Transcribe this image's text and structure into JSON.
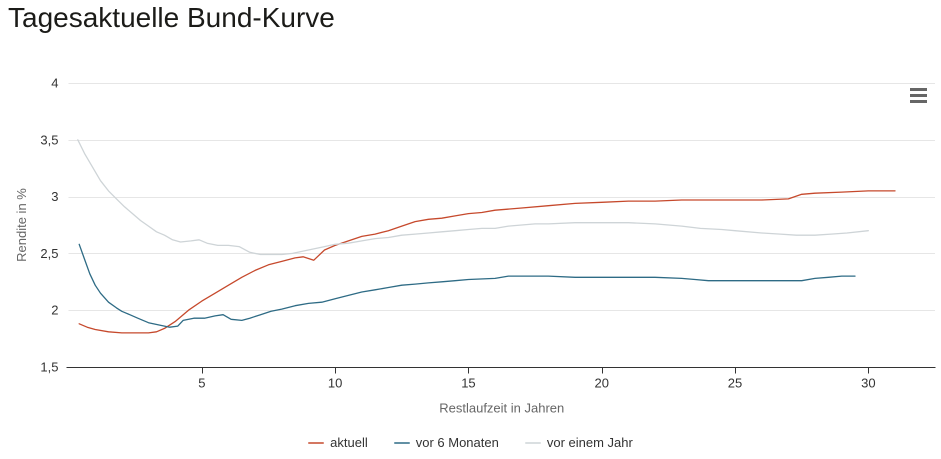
{
  "page": {
    "title": "Tagesaktuelle Bund-Kurve"
  },
  "icons": {
    "export_menu": "hamburger-menu-icon"
  },
  "colors": {
    "series_aktuell": "#c6492c",
    "series_vor_6_monaten": "#2e6b85",
    "series_vor_einem_jahr": "#ced4d7",
    "gridline": "#e6e6e6",
    "axis_line": "#333333",
    "tick_label": "#333333",
    "axis_title": "#666666",
    "menu_icon": "#666666"
  },
  "chart_data": {
    "type": "line",
    "title": "",
    "xlabel": "Restlaufzeit in Jahren",
    "ylabel": "Rendite in %",
    "xlim": [
      0,
      32.5
    ],
    "ylim": [
      1.5,
      4
    ],
    "x_ticks": [
      5,
      10,
      15,
      20,
      25,
      30
    ],
    "x_tick_labels": [
      "5",
      "10",
      "15",
      "20",
      "25",
      "30"
    ],
    "y_ticks": [
      1.5,
      2,
      2.5,
      3,
      3.5,
      4
    ],
    "y_tick_labels": [
      "1,5",
      "2",
      "2,5",
      "3",
      "3,5",
      "4"
    ],
    "grid": "horizontal",
    "legend_position": "bottom-center",
    "series": [
      {
        "name": "aktuell",
        "color": "#c6492c",
        "points": [
          [
            0.4,
            1.88
          ],
          [
            0.7,
            1.85
          ],
          [
            1,
            1.83
          ],
          [
            1.5,
            1.81
          ],
          [
            2,
            1.8
          ],
          [
            2.5,
            1.8
          ],
          [
            3,
            1.8
          ],
          [
            3.3,
            1.81
          ],
          [
            3.6,
            1.84
          ],
          [
            4,
            1.9
          ],
          [
            4.5,
            2.0
          ],
          [
            5,
            2.08
          ],
          [
            5.5,
            2.15
          ],
          [
            6,
            2.22
          ],
          [
            6.5,
            2.29
          ],
          [
            7,
            2.35
          ],
          [
            7.5,
            2.4
          ],
          [
            8,
            2.43
          ],
          [
            8.5,
            2.46
          ],
          [
            8.8,
            2.47
          ],
          [
            9.2,
            2.44
          ],
          [
            9.6,
            2.53
          ],
          [
            10,
            2.57
          ],
          [
            10.5,
            2.61
          ],
          [
            11,
            2.65
          ],
          [
            11.5,
            2.67
          ],
          [
            12,
            2.7
          ],
          [
            12.5,
            2.74
          ],
          [
            13,
            2.78
          ],
          [
            13.5,
            2.8
          ],
          [
            14,
            2.81
          ],
          [
            14.5,
            2.83
          ],
          [
            15,
            2.85
          ],
          [
            15.5,
            2.86
          ],
          [
            16,
            2.88
          ],
          [
            17,
            2.9
          ],
          [
            18,
            2.92
          ],
          [
            19,
            2.94
          ],
          [
            20,
            2.95
          ],
          [
            21,
            2.96
          ],
          [
            22,
            2.96
          ],
          [
            23,
            2.97
          ],
          [
            24,
            2.97
          ],
          [
            25,
            2.97
          ],
          [
            26,
            2.97
          ],
          [
            27,
            2.98
          ],
          [
            27.5,
            3.02
          ],
          [
            28,
            3.03
          ],
          [
            29,
            3.04
          ],
          [
            30,
            3.05
          ],
          [
            31,
            3.05
          ]
        ]
      },
      {
        "name": "vor 6 Monaten",
        "color": "#2e6b85",
        "points": [
          [
            0.4,
            2.58
          ],
          [
            0.6,
            2.45
          ],
          [
            0.8,
            2.32
          ],
          [
            1,
            2.22
          ],
          [
            1.2,
            2.15
          ],
          [
            1.5,
            2.07
          ],
          [
            1.8,
            2.02
          ],
          [
            2,
            1.99
          ],
          [
            2.3,
            1.96
          ],
          [
            2.6,
            1.93
          ],
          [
            3,
            1.89
          ],
          [
            3.4,
            1.87
          ],
          [
            3.8,
            1.85
          ],
          [
            4.1,
            1.86
          ],
          [
            4.3,
            1.91
          ],
          [
            4.7,
            1.93
          ],
          [
            5.1,
            1.93
          ],
          [
            5.5,
            1.95
          ],
          [
            5.8,
            1.96
          ],
          [
            6.1,
            1.92
          ],
          [
            6.5,
            1.91
          ],
          [
            6.8,
            1.93
          ],
          [
            7.2,
            1.96
          ],
          [
            7.6,
            1.99
          ],
          [
            8,
            2.01
          ],
          [
            8.5,
            2.04
          ],
          [
            9,
            2.06
          ],
          [
            9.5,
            2.07
          ],
          [
            10,
            2.1
          ],
          [
            10.5,
            2.13
          ],
          [
            11,
            2.16
          ],
          [
            11.5,
            2.18
          ],
          [
            12,
            2.2
          ],
          [
            12.5,
            2.22
          ],
          [
            13,
            2.23
          ],
          [
            13.5,
            2.24
          ],
          [
            14,
            2.25
          ],
          [
            14.5,
            2.26
          ],
          [
            15,
            2.27
          ],
          [
            16,
            2.28
          ],
          [
            16.5,
            2.3
          ],
          [
            17,
            2.3
          ],
          [
            18,
            2.3
          ],
          [
            19,
            2.29
          ],
          [
            20,
            2.29
          ],
          [
            21,
            2.29
          ],
          [
            22,
            2.29
          ],
          [
            23,
            2.28
          ],
          [
            23.5,
            2.27
          ],
          [
            24,
            2.26
          ],
          [
            25,
            2.26
          ],
          [
            26,
            2.26
          ],
          [
            27,
            2.26
          ],
          [
            27.5,
            2.26
          ],
          [
            28,
            2.28
          ],
          [
            28.5,
            2.29
          ],
          [
            29,
            2.3
          ],
          [
            29.5,
            2.3
          ]
        ]
      },
      {
        "name": "vor einem Jahr",
        "color": "#ced4d7",
        "points": [
          [
            0.35,
            3.5
          ],
          [
            0.6,
            3.38
          ],
          [
            0.9,
            3.26
          ],
          [
            1.2,
            3.14
          ],
          [
            1.5,
            3.05
          ],
          [
            1.8,
            2.98
          ],
          [
            2.1,
            2.91
          ],
          [
            2.4,
            2.85
          ],
          [
            2.7,
            2.79
          ],
          [
            3,
            2.74
          ],
          [
            3.3,
            2.69
          ],
          [
            3.6,
            2.66
          ],
          [
            3.9,
            2.62
          ],
          [
            4.2,
            2.6
          ],
          [
            4.6,
            2.61
          ],
          [
            4.9,
            2.62
          ],
          [
            5.2,
            2.59
          ],
          [
            5.6,
            2.57
          ],
          [
            6,
            2.57
          ],
          [
            6.4,
            2.56
          ],
          [
            6.8,
            2.51
          ],
          [
            7.2,
            2.49
          ],
          [
            7.6,
            2.49
          ],
          [
            8,
            2.49
          ],
          [
            8.4,
            2.5
          ],
          [
            8.8,
            2.52
          ],
          [
            9.2,
            2.54
          ],
          [
            9.6,
            2.56
          ],
          [
            10,
            2.58
          ],
          [
            10.5,
            2.59
          ],
          [
            11,
            2.61
          ],
          [
            11.5,
            2.63
          ],
          [
            12,
            2.64
          ],
          [
            12.5,
            2.66
          ],
          [
            13,
            2.67
          ],
          [
            13.5,
            2.68
          ],
          [
            14,
            2.69
          ],
          [
            14.5,
            2.7
          ],
          [
            15,
            2.71
          ],
          [
            15.5,
            2.72
          ],
          [
            16,
            2.72
          ],
          [
            16.5,
            2.74
          ],
          [
            17,
            2.75
          ],
          [
            17.5,
            2.76
          ],
          [
            18,
            2.76
          ],
          [
            19,
            2.77
          ],
          [
            20,
            2.77
          ],
          [
            21,
            2.77
          ],
          [
            22,
            2.76
          ],
          [
            22.5,
            2.75
          ],
          [
            23,
            2.74
          ],
          [
            23.7,
            2.72
          ],
          [
            24.5,
            2.71
          ],
          [
            25,
            2.7
          ],
          [
            26,
            2.68
          ],
          [
            26.7,
            2.67
          ],
          [
            27.3,
            2.66
          ],
          [
            28,
            2.66
          ],
          [
            28.6,
            2.67
          ],
          [
            29.2,
            2.68
          ],
          [
            30,
            2.7
          ]
        ]
      }
    ]
  }
}
